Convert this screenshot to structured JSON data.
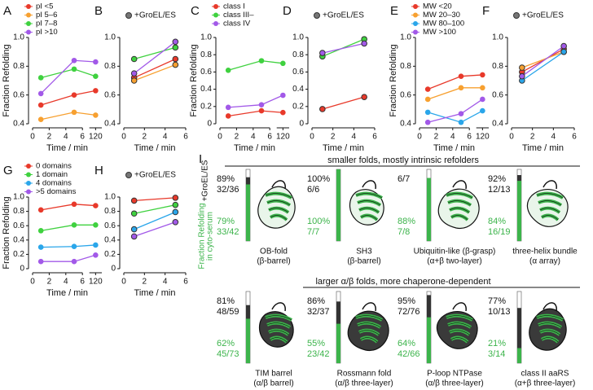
{
  "chart_data": [
    {
      "panel": "A",
      "type": "line",
      "y_label": "Fraction Refolding",
      "x_label": "Time / min",
      "x": [
        1,
        5,
        120
      ],
      "xlim": [
        0,
        125
      ],
      "xbreak": [
        6,
        115
      ],
      "xticks": [
        0,
        2,
        4,
        6,
        120
      ],
      "ylim": [
        0.4,
        1.0
      ],
      "yticks": [
        0.4,
        0.6,
        0.8,
        {
          "value": 1.0,
          "label": "1.0"
        }
      ],
      "series": [
        {
          "name": "pI <5",
          "color": "#e8392a",
          "values": [
            0.53,
            0.6,
            0.63
          ]
        },
        {
          "name": "pI 5–6",
          "color": "#f7a030",
          "values": [
            0.43,
            0.48,
            0.46
          ]
        },
        {
          "name": "pI 7–8",
          "color": "#3fd13f",
          "values": [
            0.72,
            0.78,
            0.73
          ]
        },
        {
          "name": "pI >10",
          "color": "#a259e8",
          "values": [
            0.61,
            0.84,
            0.83
          ]
        }
      ]
    },
    {
      "panel": "B",
      "type": "line",
      "legend": "+GroEL/ES",
      "marker_edge": "#333",
      "x_label": "Time / min",
      "x": [
        1,
        5
      ],
      "xlim": [
        0,
        6
      ],
      "xticks": [
        0,
        2,
        4,
        6
      ],
      "ylim": [
        0.4,
        1.0
      ],
      "yticks": [
        0.4,
        0.6,
        0.8,
        {
          "value": 1.0,
          "label": "1.0"
        }
      ],
      "series": [
        {
          "color": "#e8392a",
          "values": [
            0.72,
            0.85
          ]
        },
        {
          "color": "#f7a030",
          "values": [
            0.7,
            0.81
          ]
        },
        {
          "color": "#3fd13f",
          "values": [
            0.85,
            0.93
          ]
        },
        {
          "color": "#a259e8",
          "values": [
            0.75,
            0.97
          ]
        }
      ]
    },
    {
      "panel": "C",
      "type": "line",
      "y_label": "Fraction Refolding",
      "x_label": "Time / min",
      "x": [
        1,
        5,
        120
      ],
      "xlim": [
        0,
        125
      ],
      "xbreak": [
        6,
        115
      ],
      "xticks": [
        0,
        2,
        4,
        6,
        120
      ],
      "ylim": [
        0,
        1.0
      ],
      "yticks": [
        0,
        0.2,
        0.4,
        0.6,
        0.8,
        {
          "value": 1.0,
          "label": "1.0"
        }
      ],
      "series": [
        {
          "name": "class I",
          "color": "#e8392a",
          "values": [
            0.09,
            0.15,
            0.13
          ]
        },
        {
          "name": "class III–",
          "color": "#3fd13f",
          "values": [
            0.62,
            0.73,
            0.7
          ]
        },
        {
          "name": "class IV",
          "color": "#a259e8",
          "values": [
            0.19,
            0.22,
            0.33
          ]
        }
      ]
    },
    {
      "panel": "D",
      "type": "line",
      "legend": "+GroEL/ES",
      "marker_edge": "#333",
      "x_label": "Time / min",
      "x": [
        1,
        5
      ],
      "xlim": [
        0,
        6
      ],
      "xticks": [
        0,
        2,
        4,
        6
      ],
      "ylim": [
        0,
        1.0
      ],
      "yticks": [
        0,
        0.2,
        0.4,
        0.6,
        0.8,
        {
          "value": 1.0,
          "label": "1.0"
        }
      ],
      "series": [
        {
          "color": "#e8392a",
          "values": [
            0.17,
            0.31
          ]
        },
        {
          "color": "#3fd13f",
          "values": [
            0.78,
            0.98
          ]
        },
        {
          "color": "#a259e8",
          "values": [
            0.82,
            0.93
          ]
        }
      ]
    },
    {
      "panel": "E",
      "type": "line",
      "y_label": "Fraction Refolding",
      "x_label": "Time / min",
      "x": [
        1,
        5,
        120
      ],
      "xlim": [
        0,
        125
      ],
      "xbreak": [
        6,
        115
      ],
      "xticks": [
        0,
        2,
        4,
        6,
        120
      ],
      "ylim": [
        0.4,
        1.0
      ],
      "yticks": [
        0.4,
        0.6,
        0.8,
        {
          "value": 1.0,
          "label": "1.0"
        }
      ],
      "series": [
        {
          "name": "MW <20",
          "color": "#e8392a",
          "values": [
            0.64,
            0.73,
            0.74
          ]
        },
        {
          "name": "MW 20–30",
          "color": "#f7a030",
          "values": [
            0.57,
            0.65,
            0.65
          ]
        },
        {
          "name": "MW 80–100",
          "color": "#2aa6ea",
          "values": [
            0.48,
            0.41,
            0.49
          ]
        },
        {
          "name": "MW >100",
          "color": "#a259e8",
          "values": [
            0.41,
            0.47,
            0.57
          ]
        }
      ]
    },
    {
      "panel": "F",
      "type": "line",
      "legend": "+GroEL/ES",
      "marker_edge": "#333",
      "x_label": "Time / min",
      "x": [
        1,
        5
      ],
      "xlim": [
        0,
        6
      ],
      "xticks": [
        0,
        2,
        4,
        6
      ],
      "ylim": [
        0.4,
        1.0
      ],
      "yticks": [
        0.4,
        0.6,
        0.8,
        {
          "value": 1.0,
          "label": "1.0"
        }
      ],
      "series": [
        {
          "color": "#e8392a",
          "values": [
            0.76,
            0.92
          ]
        },
        {
          "color": "#f7a030",
          "values": [
            0.79,
            0.9
          ]
        },
        {
          "color": "#2aa6ea",
          "values": [
            0.7,
            0.9
          ]
        },
        {
          "color": "#a259e8",
          "values": [
            0.73,
            0.94
          ]
        }
      ]
    },
    {
      "panel": "G",
      "type": "line",
      "y_label": "Fraction Refolding",
      "x_label": "Time / min",
      "x": [
        1,
        5,
        120
      ],
      "xlim": [
        0,
        125
      ],
      "xbreak": [
        6,
        115
      ],
      "xticks": [
        0,
        2,
        4,
        6,
        120
      ],
      "ylim": [
        0,
        1.0
      ],
      "yticks": [
        0,
        0.2,
        0.4,
        0.6,
        0.8,
        {
          "value": 1.0,
          "label": "1.0"
        }
      ],
      "series": [
        {
          "name": "0 domains",
          "color": "#e8392a",
          "values": [
            0.82,
            0.9,
            0.88
          ]
        },
        {
          "name": "1 domain",
          "color": "#3fd13f",
          "values": [
            0.53,
            0.61,
            0.61
          ]
        },
        {
          "name": "4 domains",
          "color": "#2aa6ea",
          "values": [
            0.3,
            0.31,
            0.33
          ]
        },
        {
          "name": ">5 domains",
          "color": "#a259e8",
          "values": [
            0.1,
            0.1,
            0.19
          ]
        }
      ]
    },
    {
      "panel": "H",
      "type": "line",
      "legend": "+GroEL/ES",
      "marker_edge": "#333",
      "x_label": "Time / min",
      "x": [
        1,
        5
      ],
      "xlim": [
        0,
        6
      ],
      "xticks": [
        0,
        2,
        4,
        6
      ],
      "ylim": [
        0,
        1.0
      ],
      "yticks": [
        0,
        0.2,
        0.4,
        0.6,
        0.8,
        {
          "value": 1.0,
          "label": "1.0"
        }
      ],
      "series": [
        {
          "color": "#e8392a",
          "values": [
            0.95,
            0.99
          ]
        },
        {
          "color": "#3fd13f",
          "values": [
            0.77,
            0.89
          ]
        },
        {
          "color": "#2aa6ea",
          "values": [
            0.55,
            0.79
          ]
        },
        {
          "color": "#a259e8",
          "values": [
            0.45,
            0.65
          ]
        }
      ]
    }
  ],
  "panel_i": {
    "letter": "I",
    "groel_label": "+GroEL/ES",
    "cyto_label": [
      "Fraction Refolding",
      "in cyto-serum"
    ],
    "groups": [
      {
        "header": "smaller folds, mostly intrinsic refolders",
        "folds": [
          {
            "name": "OB-fold",
            "class": "(β-barrel)",
            "groel": {
              "value": 89,
              "label": "89%"
            },
            "groel_frac": "32/36",
            "cyto": {
              "value": 79,
              "label": "79%"
            },
            "cyto_frac": "33/42"
          },
          {
            "name": "SH3",
            "class": "(β-barrel)",
            "groel": {
              "value": 100,
              "label": "100%"
            },
            "groel_frac": "6/6",
            "cyto": {
              "value": 100,
              "label": "100%"
            },
            "cyto_frac": "7/7"
          },
          {
            "name": "Ubiquitin-like (β-grasp)",
            "class": "(α+β two-layer)",
            "groel_frac": "6/7",
            "cyto": {
              "value": 88,
              "label": "88%"
            },
            "cyto_frac": "7/8"
          },
          {
            "name": "three-helix bundle",
            "class": "(α array)",
            "groel": {
              "value": 92,
              "label": "92%"
            },
            "groel_frac": "12/13",
            "cyto": {
              "value": 84,
              "label": "84%"
            },
            "cyto_frac": "16/19"
          }
        ]
      },
      {
        "header": "larger α/β folds, more chaperone-dependent",
        "folds": [
          {
            "name": "TIM barrel",
            "class": "(α/β barrel)",
            "groel": {
              "value": 81,
              "label": "81%"
            },
            "groel_frac": "48/59",
            "cyto": {
              "value": 62,
              "label": "62%"
            },
            "cyto_frac": "45/73"
          },
          {
            "name": "Rossmann fold",
            "class": "(α/β three-layer)",
            "groel": {
              "value": 86,
              "label": "86%"
            },
            "groel_frac": "32/37",
            "cyto": {
              "value": 55,
              "label": "55%"
            },
            "cyto_frac": "23/42"
          },
          {
            "name": "P-loop NTPase",
            "class": "(α/β three-layer)",
            "groel": {
              "value": 95,
              "label": "95%"
            },
            "groel_frac": "72/76",
            "cyto": {
              "value": 64,
              "label": "64%"
            },
            "cyto_frac": "42/66"
          },
          {
            "name": "class II aaRS",
            "class": "(α+β three-layer)",
            "groel": {
              "value": 77,
              "label": "77%"
            },
            "groel_frac": "10/13",
            "cyto": {
              "value": 21,
              "label": "21%"
            },
            "cyto_frac": "3/14"
          }
        ]
      }
    ]
  }
}
